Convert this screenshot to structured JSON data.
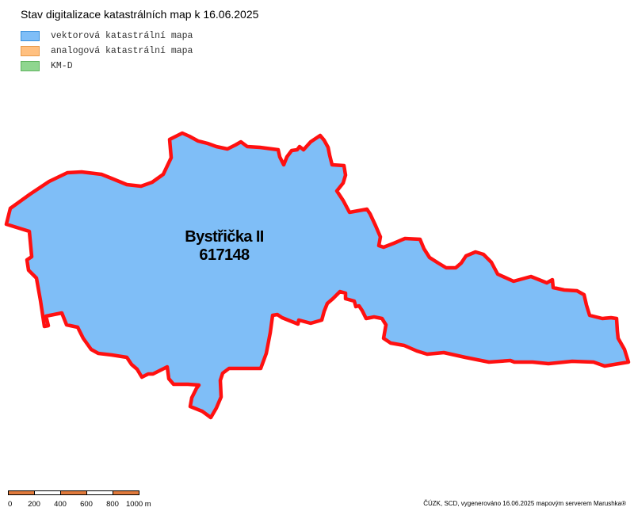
{
  "map_title": "Stav digitalizace katastrálních map k 16.06.2025",
  "legend": [
    {
      "label": "vektorová katastrální mapa",
      "fill": "#7fbef7",
      "border": "#3a8fd8"
    },
    {
      "label": "analogová katastrální mapa",
      "fill": "#ffc080",
      "border": "#e89a4a"
    },
    {
      "label": "KM-D",
      "fill": "#8fd68f",
      "border": "#5fb35f"
    }
  ],
  "cadastre": {
    "name": "Bystřička II",
    "code": "617148",
    "status": "vektorová katastrální mapa",
    "fill": "#7fbef7",
    "outline": "#ff1010"
  },
  "scale": {
    "labels": [
      "0",
      "200",
      "400",
      "600",
      "800",
      "1000 m"
    ],
    "colors": [
      "#e07a3c",
      "#ffffff",
      "#e07a3c",
      "#ffffff",
      "#e07a3c"
    ]
  },
  "credit": "ČÚZK, SCD, vygenerováno 16.06.2025 mapovým serverem Marushka®"
}
